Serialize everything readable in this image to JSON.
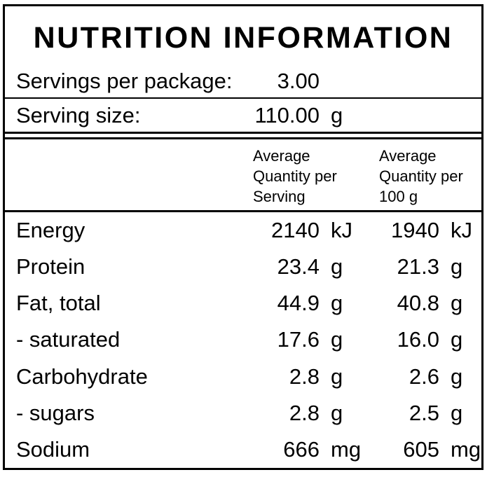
{
  "panel": {
    "title": "NUTRITION INFORMATION",
    "serving_info": [
      {
        "label": "Servings per package:",
        "value": "3.00",
        "unit": ""
      },
      {
        "label": "Serving size:",
        "value": "110.00",
        "unit": "g"
      }
    ],
    "columns": {
      "per_serving": "Average\nQuantity per\nServing",
      "per_100g": "Average\nQuantity per\n100 g"
    },
    "rows": [
      {
        "name": "Energy",
        "per_serving": "2140",
        "per_serving_unit": "kJ",
        "per_100g": "1940",
        "per_100g_unit": "kJ"
      },
      {
        "name": "Protein",
        "per_serving": "23.4",
        "per_serving_unit": "g",
        "per_100g": "21.3",
        "per_100g_unit": "g"
      },
      {
        "name": "Fat, total",
        "per_serving": "44.9",
        "per_serving_unit": "g",
        "per_100g": "40.8",
        "per_100g_unit": "g"
      },
      {
        "name": "- saturated",
        "per_serving": "17.6",
        "per_serving_unit": "g",
        "per_100g": "16.0",
        "per_100g_unit": "g"
      },
      {
        "name": "Carbohydrate",
        "per_serving": "2.8",
        "per_serving_unit": "g",
        "per_100g": "2.6",
        "per_100g_unit": "g"
      },
      {
        "name": "- sugars",
        "per_serving": "2.8",
        "per_serving_unit": "g",
        "per_100g": "2.5",
        "per_100g_unit": "g"
      },
      {
        "name": "Sodium",
        "per_serving": "666",
        "per_serving_unit": "mg",
        "per_100g": "605",
        "per_100g_unit": "mg"
      }
    ],
    "colors": {
      "text": "#000000",
      "background": "#ffffff",
      "border": "#000000"
    }
  }
}
